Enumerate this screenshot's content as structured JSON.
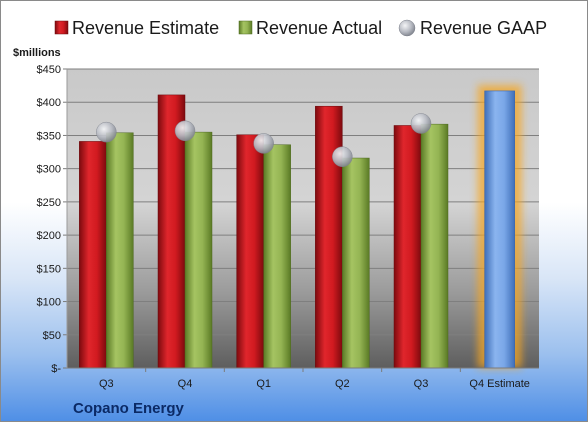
{
  "chart_data": {
    "type": "bar",
    "title": "",
    "company": "Copano Energy",
    "units_label": "$millions",
    "categories": [
      "Q3",
      "Q4",
      "Q1",
      "Q2",
      "Q3",
      "Q4 Estimate"
    ],
    "series": [
      {
        "name": "Revenue Estimate",
        "kind": "bar",
        "color": "#c0161c",
        "values": [
          341,
          411,
          351,
          394,
          365,
          null
        ]
      },
      {
        "name": "Revenue Actual",
        "kind": "bar",
        "color": "#86a845",
        "values": [
          354,
          355,
          336,
          316,
          367,
          null
        ]
      },
      {
        "name": "Revenue GAAP",
        "kind": "marker",
        "color": "#b9bcc4",
        "values": [
          355,
          357,
          338,
          318,
          368,
          null
        ]
      }
    ],
    "highlight": {
      "category": "Q4 Estimate",
      "value": 417,
      "color": "#6a9be0",
      "glow_color": "#f5a623"
    },
    "ylim": [
      0,
      450
    ],
    "y_ticks": [
      "$-",
      "$50",
      "$100",
      "$150",
      "$200",
      "$250",
      "$300",
      "$350",
      "$400",
      "$450"
    ],
    "grid": true,
    "legend_position": "top"
  }
}
